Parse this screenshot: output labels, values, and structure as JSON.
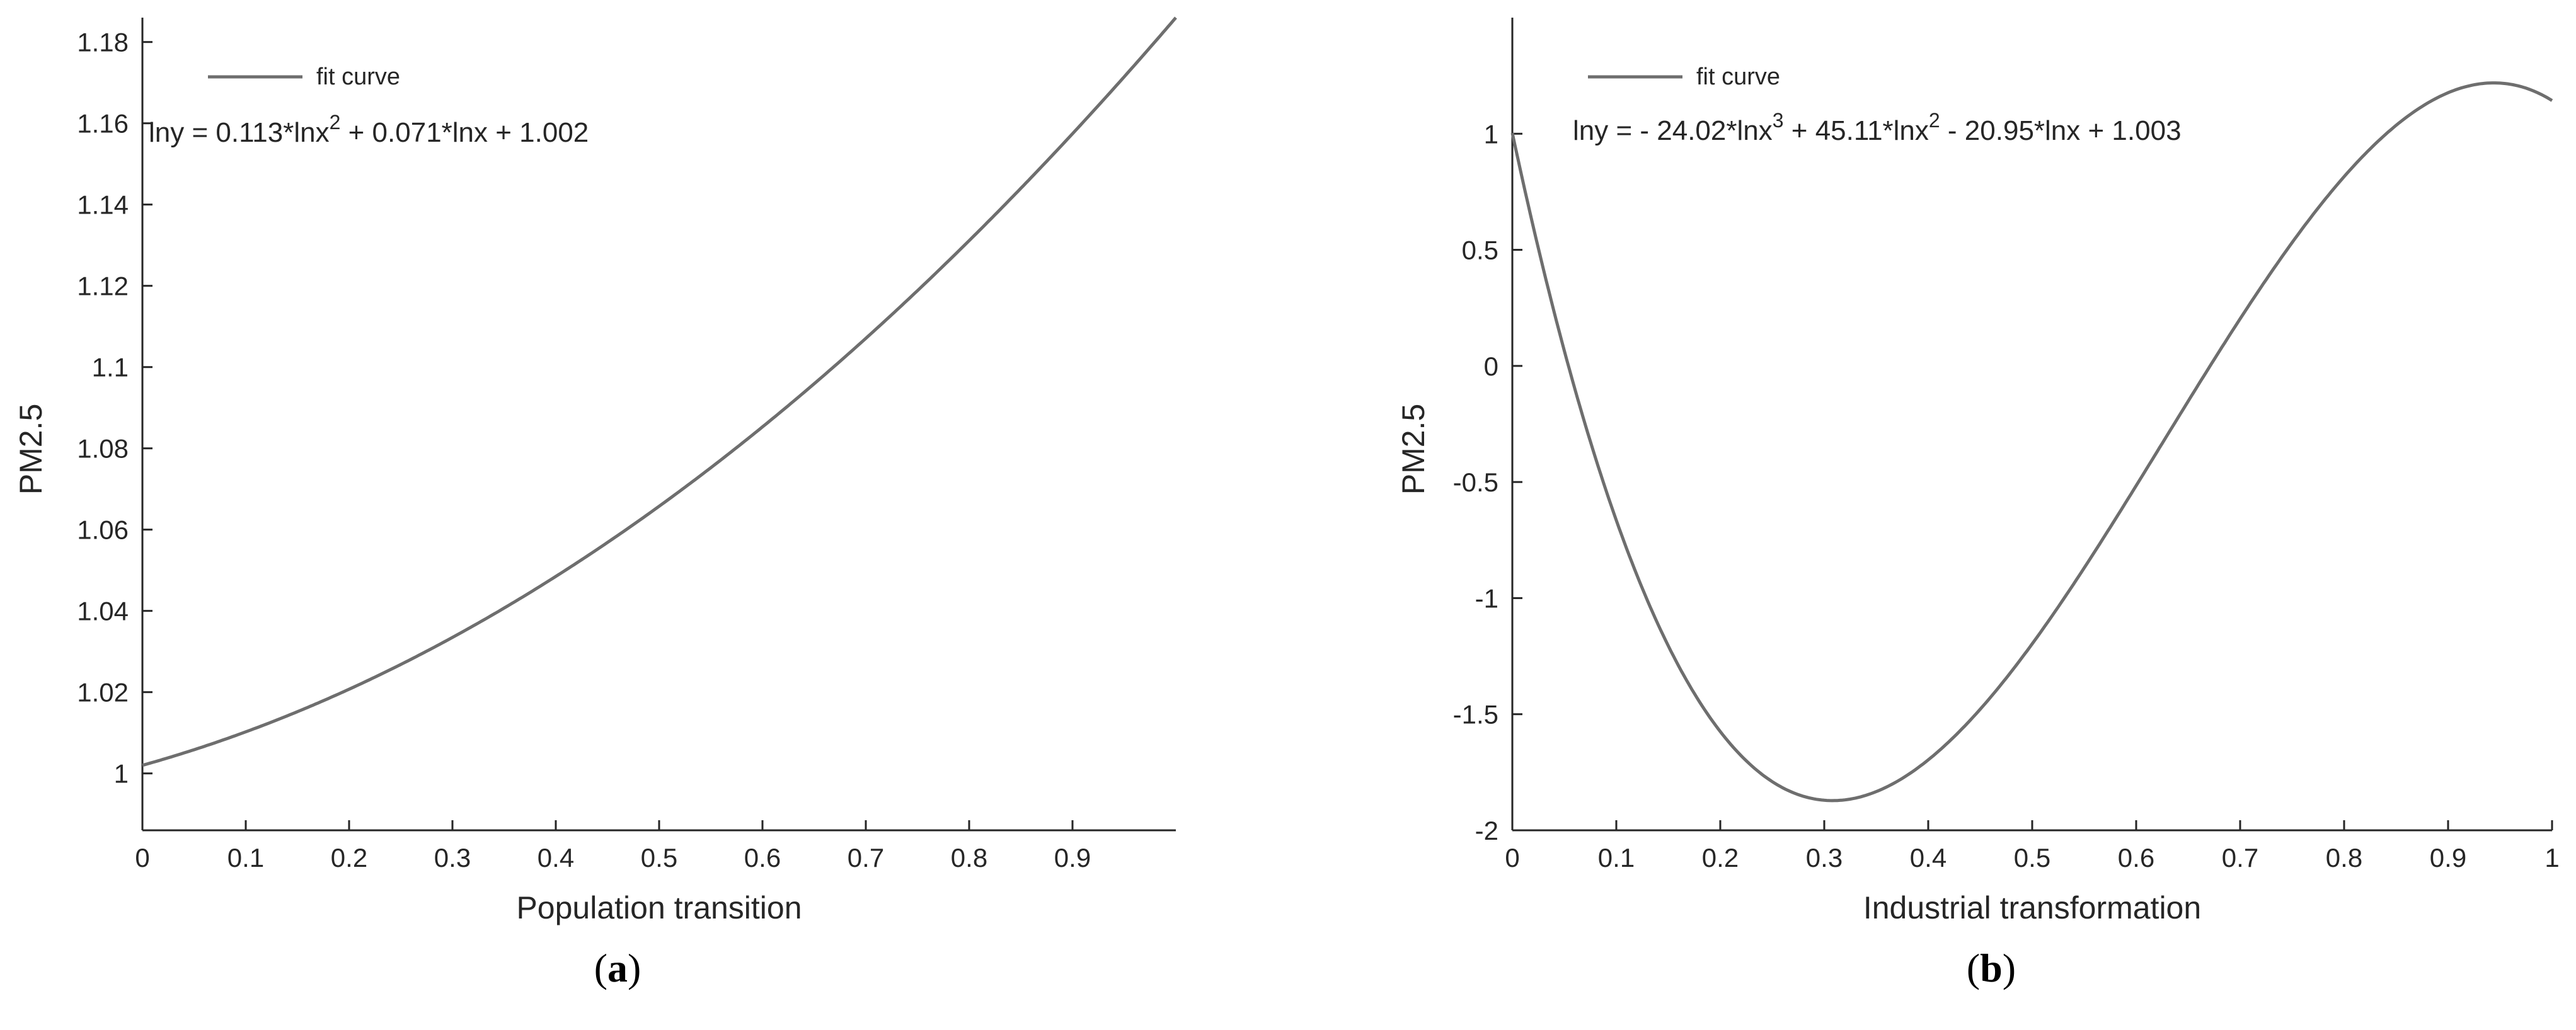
{
  "chart_data": [
    {
      "type": "line",
      "panel": "(a)",
      "panel_letter": "a",
      "xlabel": "Population transition",
      "ylabel": "PM2.5",
      "xlim": [
        0,
        1
      ],
      "ylim": [
        0.986,
        1.186
      ],
      "xticks": [
        "0",
        "0.1",
        "0.2",
        "0.3",
        "0.4",
        "0.5",
        "0.6",
        "0.7",
        "0.8",
        "0.9"
      ],
      "yticks": [
        "1",
        "1.02",
        "1.04",
        "1.06",
        "1.08",
        "1.1",
        "1.12",
        "1.14",
        "1.16",
        "1.18"
      ],
      "grid": false,
      "legend": {
        "placement": "top-left",
        "entries": [
          "fit curve"
        ]
      },
      "annotation": {
        "base": "lny = 0.113*lnx",
        "sup1": "2",
        "rest": " + 0.071*lnx + 1.002"
      },
      "series": [
        {
          "name": "fit curve",
          "coefficients": [
            0.113,
            0.071,
            1.002
          ],
          "x": [
            0,
            0.1,
            0.2,
            0.3,
            0.4,
            0.5,
            0.6,
            0.7,
            0.8,
            0.9,
            1.0
          ],
          "y": [
            1.002,
            1.0101,
            1.0207,
            1.0335,
            1.0488,
            1.0658,
            1.0854,
            1.107,
            1.1303,
            1.1566,
            1.186
          ]
        }
      ],
      "color": "#6e6e6e"
    },
    {
      "type": "line",
      "panel": "(b)",
      "panel_letter": "b",
      "xlabel": "Industrial transformation",
      "ylabel": "PM2.5",
      "xlim": [
        0,
        1
      ],
      "ylim": [
        -2,
        1.5
      ],
      "xticks": [
        "0",
        "0.1",
        "0.2",
        "0.3",
        "0.4",
        "0.5",
        "0.6",
        "0.7",
        "0.8",
        "0.9",
        "1"
      ],
      "yticks": [
        "-2",
        "-1.5",
        "-1",
        "-0.5",
        "0",
        "0.5",
        "1"
      ],
      "grid": false,
      "legend": {
        "placement": "top-left",
        "entries": [
          "fit curve"
        ]
      },
      "annotation": {
        "base": "lny = - 24.02*lnx",
        "sup1": "3",
        "mid": " + 45.11*lnx",
        "sup2": "2",
        "rest": " - 20.95*lnx + 1.003"
      },
      "series": [
        {
          "name": "fit curve",
          "coefficients": [
            -24.02,
            45.11,
            -20.95,
            1.003
          ],
          "x": [
            0,
            0.05,
            0.1,
            0.15,
            0.2,
            0.25,
            0.3,
            0.35,
            0.4,
            0.45,
            0.5,
            0.55,
            0.6,
            0.65,
            0.7,
            0.75,
            0.8,
            0.85,
            0.9,
            0.95,
            1.0
          ],
          "y": [
            1.003,
            0.0,
            -0.75,
            -1.3,
            -1.62,
            -1.8,
            -1.87,
            -1.84,
            -1.72,
            -1.48,
            -1.2,
            -0.86,
            -0.46,
            -0.06,
            0.3,
            0.62,
            0.88,
            1.07,
            1.19,
            1.22,
            1.15
          ]
        }
      ],
      "color": "#6e6e6e"
    }
  ]
}
